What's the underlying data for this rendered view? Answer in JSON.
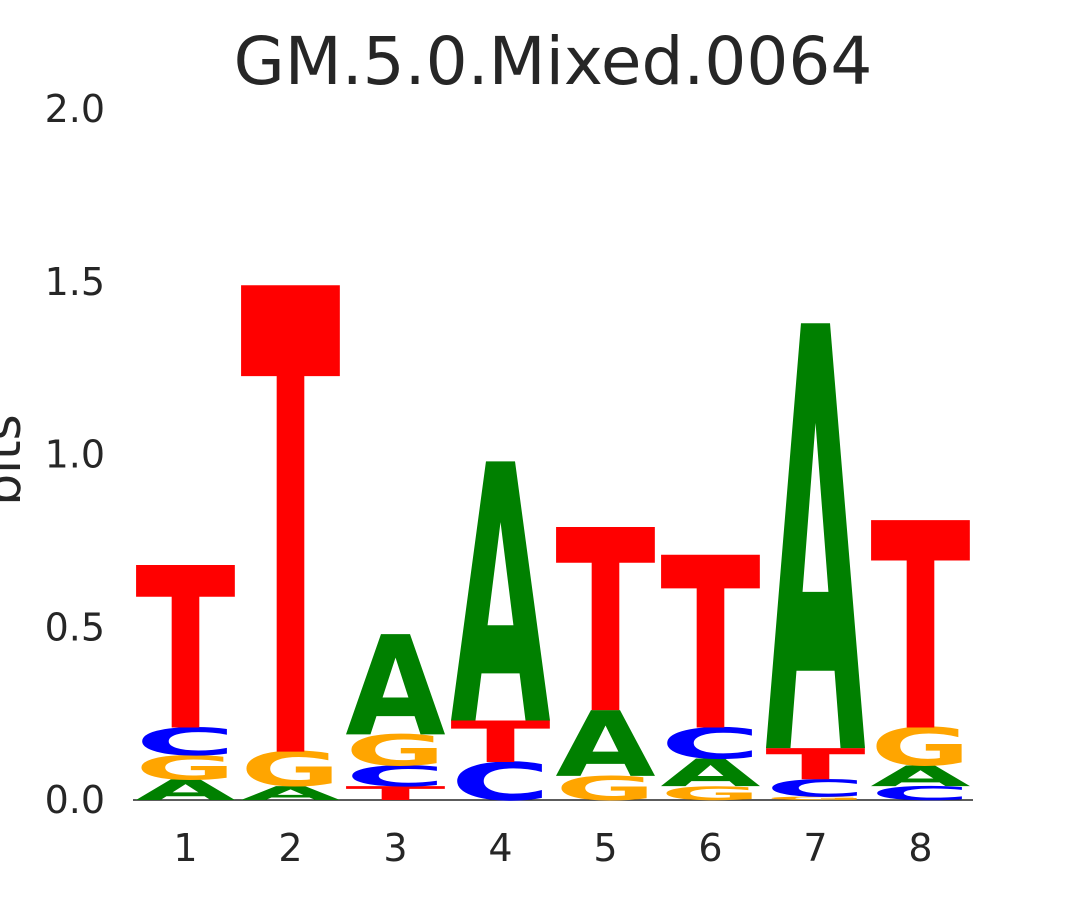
{
  "chart_data": {
    "type": "sequence-logo",
    "title": "GM.5.0.Mixed.0064",
    "ylabel": "bits",
    "ylim": [
      0,
      2.0
    ],
    "yticks": [
      "0.0",
      "0.5",
      "1.0",
      "1.5",
      "2.0"
    ],
    "positions": [
      "1",
      "2",
      "3",
      "4",
      "5",
      "6",
      "7",
      "8"
    ],
    "colors": {
      "A": "#008000",
      "C": "#0000ff",
      "G": "#ffa500",
      "T": "#ff0000"
    },
    "stacks": [
      [
        {
          "letter": "A",
          "bits": 0.06
        },
        {
          "letter": "G",
          "bits": 0.07
        },
        {
          "letter": "C",
          "bits": 0.08
        },
        {
          "letter": "T",
          "bits": 0.47
        }
      ],
      [
        {
          "letter": "A",
          "bits": 0.04
        },
        {
          "letter": "G",
          "bits": 0.1
        },
        {
          "letter": "T",
          "bits": 1.35
        }
      ],
      [
        {
          "letter": "T",
          "bits": 0.04
        },
        {
          "letter": "C",
          "bits": 0.06
        },
        {
          "letter": "G",
          "bits": 0.09
        },
        {
          "letter": "A",
          "bits": 0.29
        }
      ],
      [
        {
          "letter": "C",
          "bits": 0.11
        },
        {
          "letter": "T",
          "bits": 0.12
        },
        {
          "letter": "A",
          "bits": 0.75
        }
      ],
      [
        {
          "letter": "G",
          "bits": 0.07
        },
        {
          "letter": "A",
          "bits": 0.19
        },
        {
          "letter": "T",
          "bits": 0.53
        }
      ],
      [
        {
          "letter": "G",
          "bits": 0.04
        },
        {
          "letter": "A",
          "bits": 0.08
        },
        {
          "letter": "C",
          "bits": 0.09
        },
        {
          "letter": "T",
          "bits": 0.5
        }
      ],
      [
        {
          "letter": "G",
          "bits": 0.01
        },
        {
          "letter": "C",
          "bits": 0.05
        },
        {
          "letter": "T",
          "bits": 0.09
        },
        {
          "letter": "A",
          "bits": 1.23
        }
      ],
      [
        {
          "letter": "C",
          "bits": 0.04
        },
        {
          "letter": "A",
          "bits": 0.06
        },
        {
          "letter": "G",
          "bits": 0.11
        },
        {
          "letter": "T",
          "bits": 0.6
        }
      ]
    ]
  }
}
